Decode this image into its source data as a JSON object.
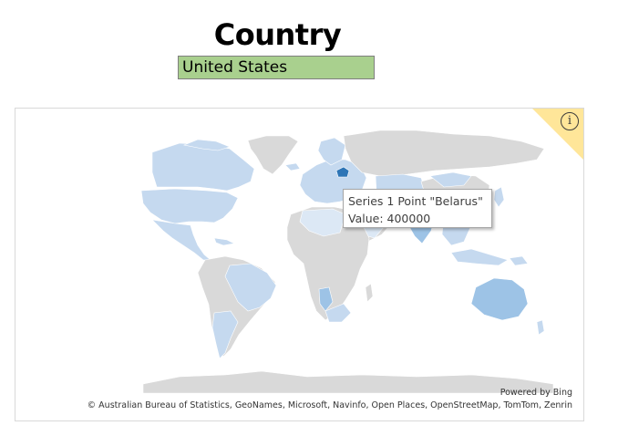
{
  "title": "Country",
  "selected_country": "United States",
  "map": {
    "colors": {
      "no_data": "#d9d9d9",
      "low": "#c5d9ef",
      "lighter": "#dce8f5",
      "mid": "#9dc3e6",
      "highlight": "#2e75b6",
      "badge": "#ffe699"
    },
    "info_icon": "info-icon",
    "tooltip": {
      "line1": "Series 1 Point \"Belarus\"",
      "line2": "Value: 400000"
    },
    "powered_by": "Powered by Bing",
    "attribution": "© Australian Bureau of Statistics, GeoNames, Microsoft, Navinfo, Open Places, OpenStreetMap, TomTom, Zenrin"
  },
  "chart_data": {
    "type": "map",
    "series": [
      {
        "name": "Series 1",
        "points": [
          {
            "region": "Belarus",
            "value": 400000
          }
        ]
      }
    ]
  }
}
